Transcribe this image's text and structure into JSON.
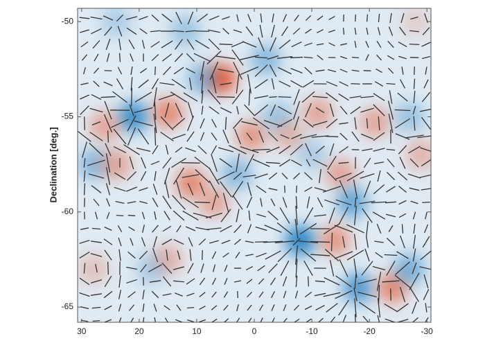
{
  "chart_data": {
    "type": "heatmap",
    "ylabel": "Declination [deg.]",
    "xlim": [
      30.7,
      -30.7
    ],
    "ylim": [
      -49.3,
      -65.8
    ],
    "xticks": [
      30,
      20,
      10,
      0,
      -10,
      -20,
      -30
    ],
    "yticks": [
      -50,
      -55,
      -60,
      -65
    ],
    "positive_color": "#e8603c",
    "negative_color": "#2f86c6",
    "x": [
      5.8,
      21,
      15,
      26,
      28,
      24,
      11,
      7,
      3,
      0.5,
      -2,
      -4,
      -6,
      -11,
      -10,
      -15,
      -17,
      -21,
      -27,
      -29,
      -8,
      -14,
      -18,
      -24,
      -27,
      15,
      18,
      28,
      12,
      -28,
      24,
      9
    ],
    "y": [
      -53,
      -55,
      -54.8,
      -55.5,
      -57.5,
      -57.5,
      -58.5,
      -59.5,
      -58,
      -56,
      -52,
      -55,
      -56,
      -54.8,
      -57,
      -58,
      -59.5,
      -55.3,
      -55,
      -57,
      -61.5,
      -61.5,
      -64,
      -64,
      -63,
      -62.5,
      -63,
      -63,
      -50.5,
      -50,
      -50,
      -53
    ],
    "values": [
      1,
      -0.9,
      0.7,
      0.5,
      -0.5,
      0.5,
      0.7,
      0.5,
      -0.5,
      0.6,
      -0.5,
      -0.4,
      0.4,
      0.5,
      -0.3,
      0.5,
      -0.7,
      0.5,
      -0.4,
      0.4,
      -1,
      0.6,
      -0.8,
      0.7,
      -0.6,
      0.4,
      -0.3,
      0.3,
      -0.4,
      0.2,
      -0.3,
      -0.5
    ]
  }
}
